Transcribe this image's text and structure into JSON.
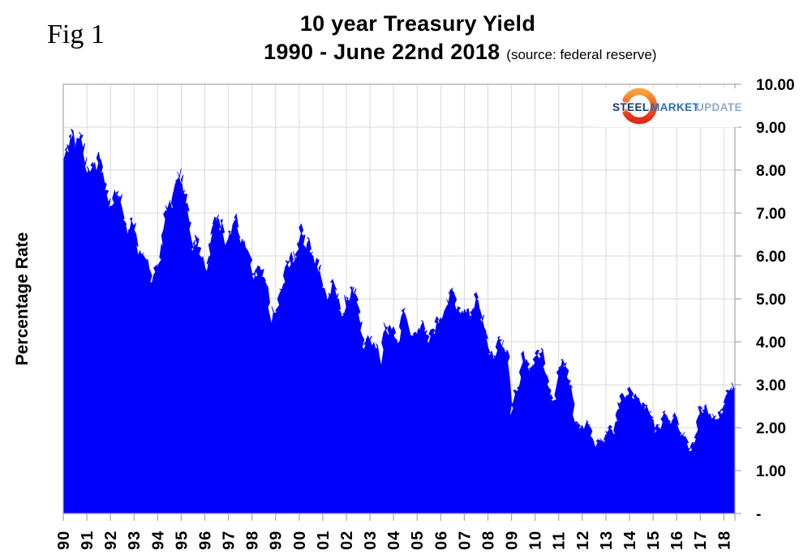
{
  "fig_label": "Fig 1",
  "title": {
    "line1": "10 year Treasury Yield",
    "line2": "1990 - June 22nd 2018",
    "source_note": "(source: federal reserve)"
  },
  "logo": {
    "steel": "STEEL",
    "market": "MARKET",
    "update": "UPDATE",
    "colors": {
      "steel": "#16386E",
      "market": "#2F6CB3",
      "update": "#93A9CB",
      "crescent_top": "#F9A23C",
      "crescent_mid": "#F05A22",
      "crescent_bottom": "#DD2A1B"
    }
  },
  "chart_data": {
    "type": "area",
    "title": "10 year Treasury Yield",
    "subtitle": "1990 - June 22nd 2018",
    "source": "(source: federal reserve)",
    "ylabel": "Percentage Rate",
    "xlabel": "",
    "ylim": [
      0,
      10
    ],
    "y_tick_step": 1,
    "y_tick_labels": [
      "10.00",
      "9.00",
      "8.00",
      "7.00",
      "6.00",
      "5.00",
      "4.00",
      "3.00",
      "2.00",
      "1.00",
      "-"
    ],
    "x_tick_labels": [
      "90",
      "91",
      "92",
      "93",
      "94",
      "95",
      "96",
      "97",
      "98",
      "99",
      "00",
      "01",
      "02",
      "03",
      "04",
      "05",
      "06",
      "07",
      "08",
      "09",
      "10",
      "11",
      "12",
      "13",
      "14",
      "15",
      "16",
      "17",
      "18"
    ],
    "x_start": 1990.0,
    "x_end": 2018.47,
    "grid": true,
    "legend": "none",
    "fill_color": "#0000FF",
    "gridline_color": "#D9D9D9",
    "axis_color": "#A6A6A6",
    "series": [
      {
        "name": "10 year Treasury Yield",
        "frequency": "monthly",
        "start": "1990-01",
        "end": "2018-06",
        "values": [
          8.21,
          8.47,
          8.59,
          8.79,
          8.95,
          8.48,
          8.47,
          8.75,
          8.89,
          8.72,
          8.39,
          8.08,
          8.09,
          7.85,
          8.11,
          8.04,
          8.07,
          8.28,
          8.27,
          7.9,
          7.65,
          7.53,
          7.42,
          7.09,
          7.03,
          7.34,
          7.54,
          7.48,
          7.39,
          7.26,
          6.84,
          6.59,
          6.42,
          6.59,
          6.87,
          6.77,
          6.6,
          6.26,
          5.98,
          5.97,
          6.04,
          5.96,
          5.81,
          5.68,
          5.36,
          5.33,
          5.72,
          5.77,
          5.75,
          5.97,
          6.48,
          6.97,
          7.18,
          7.1,
          7.3,
          7.24,
          7.46,
          7.74,
          7.96,
          7.81,
          7.78,
          7.47,
          7.2,
          7.06,
          6.63,
          6.17,
          6.28,
          6.49,
          6.2,
          6.04,
          5.93,
          5.71,
          5.65,
          5.81,
          6.27,
          6.51,
          6.74,
          6.91,
          6.87,
          6.64,
          6.83,
          6.53,
          6.2,
          6.3,
          6.58,
          6.42,
          6.69,
          6.89,
          6.71,
          6.49,
          6.22,
          6.3,
          6.21,
          6.03,
          5.88,
          5.81,
          5.54,
          5.57,
          5.65,
          5.64,
          5.65,
          5.5,
          5.46,
          5.34,
          4.81,
          4.35,
          4.83,
          4.65,
          4.72,
          5.0,
          5.23,
          5.18,
          5.54,
          5.9,
          5.79,
          5.94,
          5.92,
          6.11,
          6.03,
          6.28,
          6.66,
          6.52,
          6.26,
          5.99,
          6.44,
          6.1,
          6.05,
          5.83,
          5.8,
          5.74,
          5.72,
          5.24,
          5.16,
          5.1,
          4.89,
          5.14,
          5.39,
          5.28,
          5.24,
          4.97,
          4.73,
          4.57,
          4.65,
          5.09,
          5.04,
          4.91,
          5.28,
          5.21,
          5.16,
          4.93,
          4.65,
          4.26,
          3.87,
          3.94,
          4.05,
          4.03,
          4.05,
          3.9,
          3.81,
          3.96,
          3.57,
          3.33,
          3.98,
          4.45,
          4.27,
          4.29,
          4.3,
          4.27,
          4.15,
          4.08,
          3.83,
          4.35,
          4.72,
          4.73,
          4.5,
          4.28,
          4.13,
          4.1,
          4.19,
          4.23,
          4.22,
          4.17,
          4.5,
          4.34,
          4.14,
          4.0,
          4.18,
          4.26,
          4.2,
          4.46,
          4.54,
          4.47,
          4.42,
          4.57,
          4.72,
          4.99,
          5.11,
          5.11,
          5.09,
          4.88,
          4.72,
          4.73,
          4.6,
          4.56,
          4.76,
          4.72,
          4.56,
          4.69,
          4.75,
          5.1,
          5.0,
          4.67,
          4.52,
          4.53,
          4.15,
          4.1,
          3.74,
          3.74,
          3.51,
          3.68,
          3.88,
          4.1,
          4.01,
          3.89,
          3.69,
          3.81,
          3.53,
          2.25,
          2.52,
          2.87,
          2.82,
          2.93,
          3.29,
          3.72,
          3.56,
          3.59,
          3.4,
          3.39,
          3.4,
          3.59,
          3.73,
          3.69,
          3.73,
          3.85,
          3.42,
          3.2,
          3.01,
          2.7,
          2.65,
          2.54,
          2.76,
          3.29,
          3.39,
          3.58,
          3.41,
          3.46,
          3.17,
          3.0,
          3.0,
          2.3,
          1.98,
          2.15,
          2.01,
          1.98,
          1.97,
          1.97,
          2.17,
          2.05,
          1.8,
          1.62,
          1.47,
          1.68,
          1.72,
          1.75,
          1.65,
          1.72,
          1.91,
          1.98,
          1.96,
          1.76,
          1.93,
          2.3,
          2.58,
          2.74,
          2.81,
          2.62,
          2.72,
          2.9,
          2.86,
          2.71,
          2.72,
          2.71,
          2.56,
          2.6,
          2.54,
          2.42,
          2.53,
          2.3,
          2.33,
          2.21,
          1.88,
          1.98,
          2.04,
          1.94,
          2.2,
          2.36,
          2.32,
          2.17,
          2.17,
          2.07,
          2.26,
          2.24,
          2.09,
          1.78,
          1.89,
          1.81,
          1.81,
          1.64,
          1.45,
          1.56,
          1.63,
          1.76,
          2.14,
          2.49,
          2.43,
          2.42,
          2.48,
          2.3,
          2.3,
          2.19,
          2.32,
          2.21,
          2.2,
          2.36,
          2.35,
          2.4,
          2.58,
          2.86,
          2.84,
          2.87,
          3.05,
          2.9
        ]
      }
    ]
  }
}
